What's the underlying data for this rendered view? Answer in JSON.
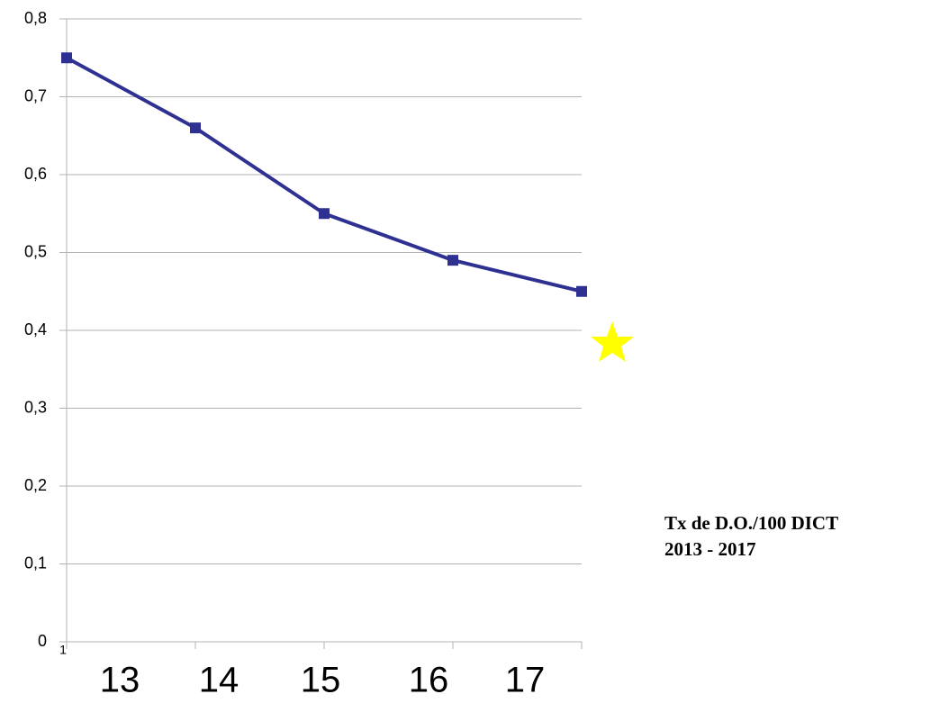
{
  "chart_data": {
    "type": "line",
    "categories": [
      "1",
      null,
      null,
      null,
      null
    ],
    "x_annotations": [
      "13",
      "14",
      "15",
      "16",
      "17"
    ],
    "series": [
      {
        "color": "#2e3192",
        "values": [
          0.75,
          0.66,
          0.55,
          0.49,
          0.45
        ]
      }
    ],
    "ylim": [
      0,
      0.8
    ],
    "yticks": [
      0,
      {
        "value": 0.1,
        "label": "0,1"
      },
      {
        "value": 0.2,
        "label": "0,2"
      },
      {
        "value": 0.3,
        "label": "0,3"
      },
      {
        "value": 0.4,
        "label": "0,4"
      },
      {
        "value": 0.5,
        "label": "0,5"
      },
      {
        "value": 0.6,
        "label": "0,6"
      },
      {
        "value": 0.7,
        "label": "0,7"
      },
      {
        "value": 0.8,
        "label": "0,8"
      }
    ],
    "grid": true,
    "annotations": [
      "Tx de D.O./100 DICT",
      "2013 - 2017"
    ]
  }
}
